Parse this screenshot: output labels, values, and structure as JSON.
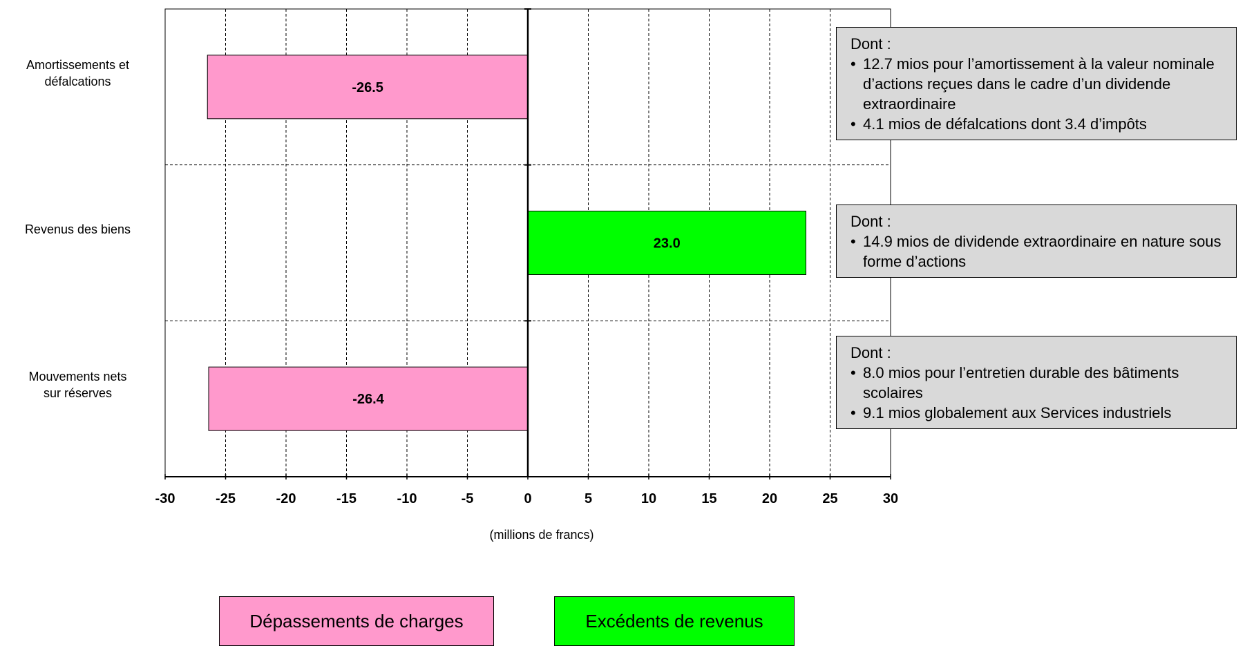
{
  "colors": {
    "negative": "#ff99cc",
    "positive": "#00ff00",
    "note_bg": "#d9d9d9"
  },
  "chart_data": {
    "type": "bar",
    "orientation": "horizontal",
    "categories": [
      "Amortissements et défalcations",
      "Revenus des biens",
      "Mouvements nets sur réserves"
    ],
    "category_label_lines": [
      [
        "Amortissements et",
        "défalcations"
      ],
      [
        "Revenus des biens"
      ],
      [
        "Mouvements nets",
        "sur réserves"
      ]
    ],
    "values": [
      -26.5,
      23.0,
      -26.4
    ],
    "data_labels": [
      "-26.5",
      "23.0",
      "-26.4"
    ],
    "xlim": [
      -30,
      30
    ],
    "xticks": [
      -30,
      -25,
      -20,
      -15,
      -10,
      -5,
      0,
      5,
      10,
      15,
      20,
      25,
      30
    ],
    "xticklabels": [
      "-30",
      "-25",
      "-20",
      "-15",
      "-10",
      "-5",
      "0",
      "5",
      "10",
      "15",
      "20",
      "25",
      "30"
    ],
    "xlabel": "(millions de francs)",
    "grid": true,
    "legend": [
      {
        "name": "Dépassements de charges",
        "color": "#ff99cc"
      },
      {
        "name": "Excédents de revenus",
        "color": "#00ff00"
      }
    ]
  },
  "notes": [
    {
      "title": "Dont :",
      "items": [
        "12.7 mios pour l’amortissement à la valeur nominale d’actions reçues dans le cadre d’un dividende extraordinaire",
        "4.1 mios de défalcations dont 3.4 d’impôts"
      ]
    },
    {
      "title": "Dont :",
      "items": [
        "14.9 mios de dividende extraordinaire en nature sous forme d’actions"
      ]
    },
    {
      "title": "Dont :",
      "items": [
        "8.0 mios pour l’entretien durable des bâtiments scolaires",
        "9.1 mios globalement aux Services industriels"
      ]
    }
  ]
}
